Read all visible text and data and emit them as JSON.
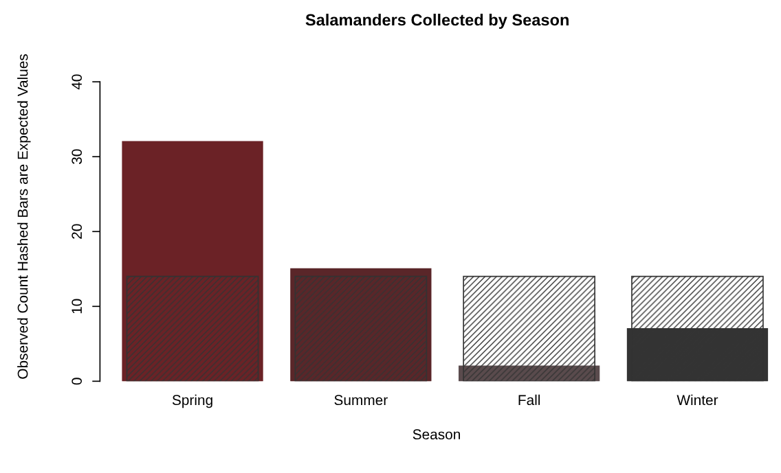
{
  "chart_data": {
    "type": "bar",
    "title": "Salamanders Collected by Season",
    "xlabel": "Season",
    "ylabel": "Observed Count Hashed Bars are Expected Values",
    "categories": [
      "Spring",
      "Summer",
      "Fall",
      "Winter"
    ],
    "series": [
      {
        "colors": [
          "#6b2226",
          "#5a2629",
          "#5a4b4d",
          "#333333"
        ],
        "values": [
          32,
          15,
          2,
          7
        ]
      },
      {
        "color": "#333333",
        "values": [
          14,
          14,
          14,
          14
        ]
      }
    ],
    "ylim": [
      0,
      40
    ],
    "yticks": [
      0,
      10,
      20,
      30,
      40
    ],
    "grid": false,
    "legend": false
  }
}
